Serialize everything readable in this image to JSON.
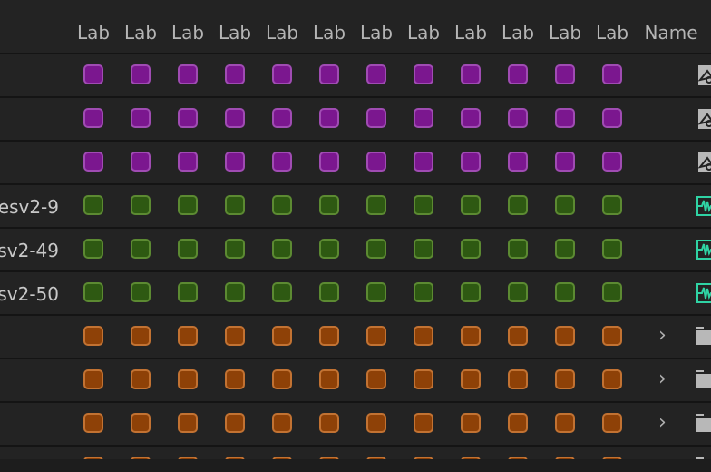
{
  "header": {
    "label_columns": [
      "Lab",
      "Lab",
      "Lab",
      "Lab",
      "Lab",
      "Lab",
      "Lab",
      "Lab",
      "Lab",
      "Lab",
      "Lab",
      "Lab"
    ],
    "name_column": "Name"
  },
  "colors": {
    "purple": {
      "fill": "#7b178f",
      "border": "#a04cb3"
    },
    "green": {
      "fill": "#2e5912",
      "border": "#5c8a32"
    },
    "orange": {
      "fill": "#8e4107",
      "border": "#c27232"
    }
  },
  "rows": [
    {
      "name": "",
      "label": "purple",
      "icon": "sequence-icon",
      "expandable": false
    },
    {
      "name": "",
      "label": "purple",
      "icon": "sequence-icon",
      "expandable": false
    },
    {
      "name": "",
      "label": "purple",
      "icon": "sequence-icon",
      "expandable": false
    },
    {
      "name": "esv2-9",
      "label": "green",
      "icon": "audio-clip-icon",
      "expandable": false
    },
    {
      "name": "sv2-49",
      "label": "green",
      "icon": "audio-clip-icon",
      "expandable": false
    },
    {
      "name": "sv2-50",
      "label": "green",
      "icon": "audio-clip-icon",
      "expandable": false
    },
    {
      "name": "",
      "label": "orange",
      "icon": "folder-icon",
      "expandable": true
    },
    {
      "name": "",
      "label": "orange",
      "icon": "folder-icon",
      "expandable": true
    },
    {
      "name": "",
      "label": "orange",
      "icon": "folder-icon",
      "expandable": true
    },
    {
      "name": "",
      "label": "orange",
      "icon": "folder-icon",
      "expandable": false
    }
  ]
}
